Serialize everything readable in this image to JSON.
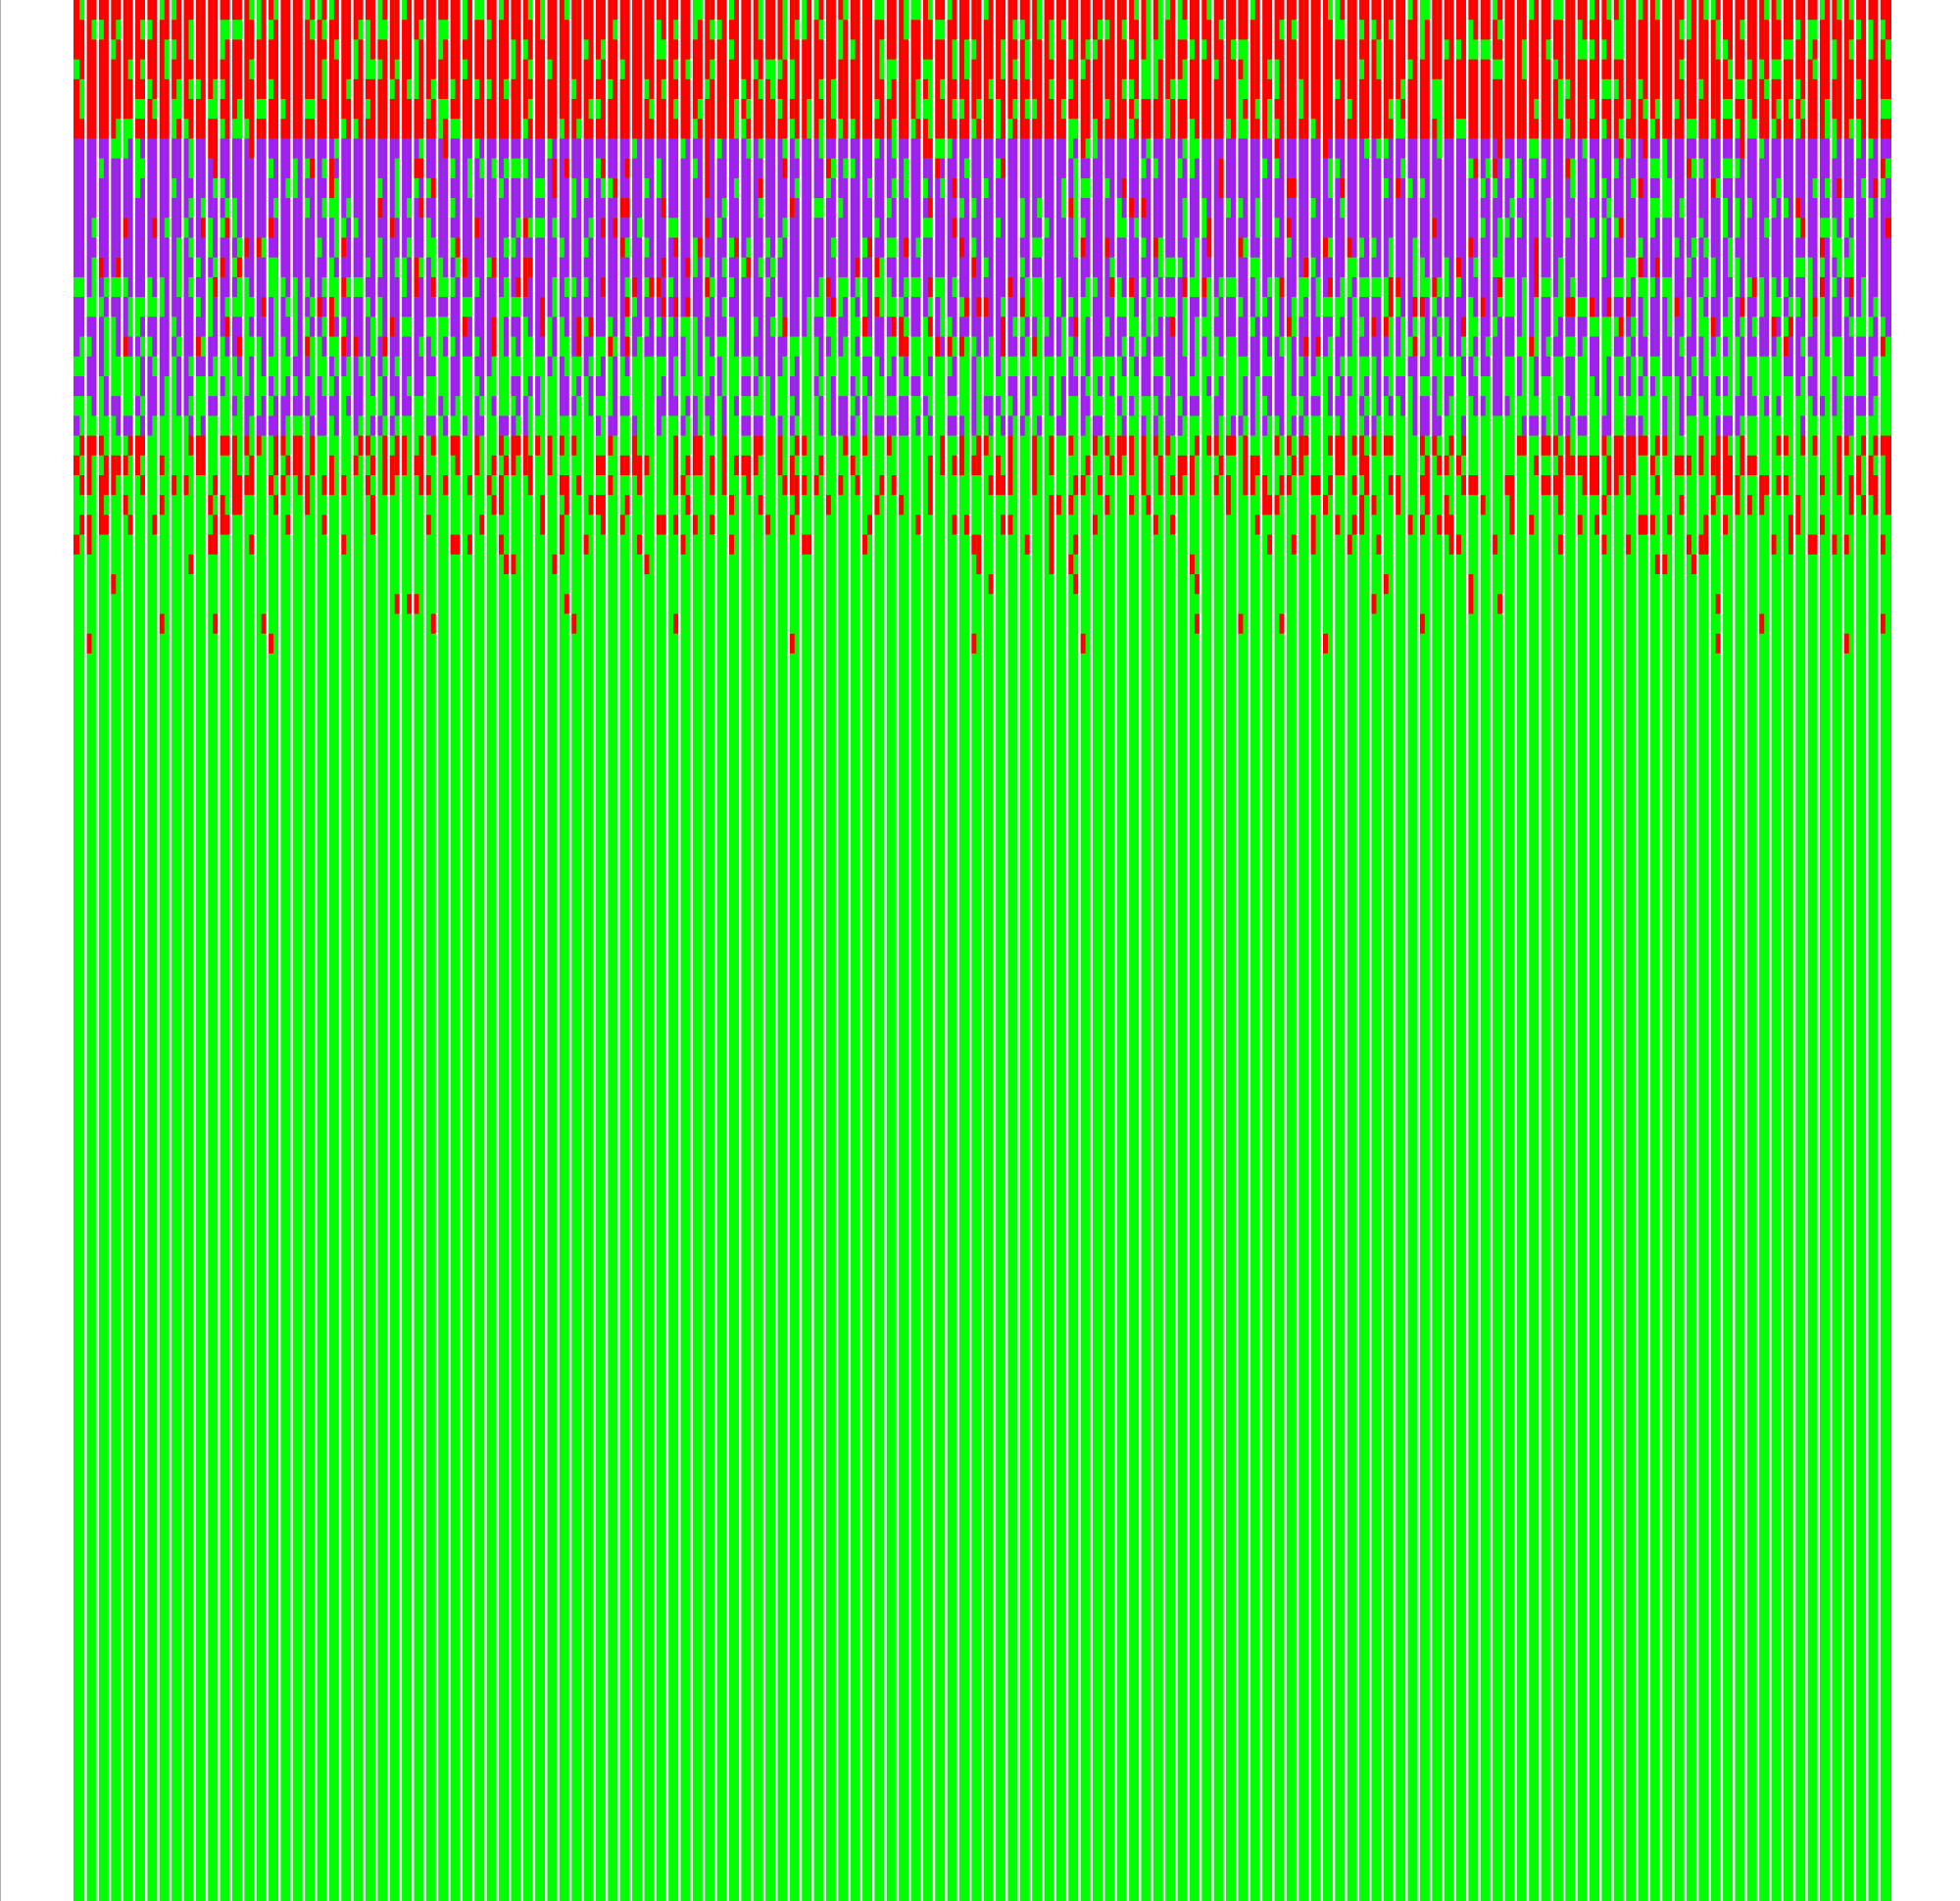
{
  "colors": {
    "background": "#ffffff",
    "lane_gap": "#ffffff",
    "state_a": "#ff0000",
    "state_b": "#a020f0",
    "state_c": "#00ff00",
    "edge_line": "#b0b0b0"
  },
  "grid": {
    "columns": 300,
    "rows": 96,
    "detailed_rows": 33
  },
  "bands": [
    {
      "state": "state_a",
      "from_row": 0,
      "to_row": 7,
      "noise_state": "state_c",
      "noise": 0.22
    },
    {
      "state": "state_b",
      "from_row": 7,
      "to_row": 14,
      "noise_state": "state_c",
      "noise": 0.18,
      "accent_state": "state_a",
      "accent": 0.06
    },
    {
      "state": "state_b",
      "from_row": 14,
      "to_row": 18,
      "noise_state": "state_c",
      "noise": 0.38,
      "accent_state": "state_a",
      "accent": 0.08
    },
    {
      "state": "state_c",
      "from_row": 18,
      "to_row": 22,
      "noise_state": "state_b",
      "noise": 0.42
    },
    {
      "state": "state_c",
      "from_row": 22,
      "to_row": 25,
      "noise_state": "state_a",
      "noise": 0.38
    },
    {
      "state": "state_c",
      "from_row": 25,
      "to_row": 28,
      "noise_state": "state_a",
      "noise": 0.2
    },
    {
      "state": "state_c",
      "from_row": 28,
      "to_row": 33,
      "noise_state": "state_a",
      "noise": 0.03
    }
  ]
}
